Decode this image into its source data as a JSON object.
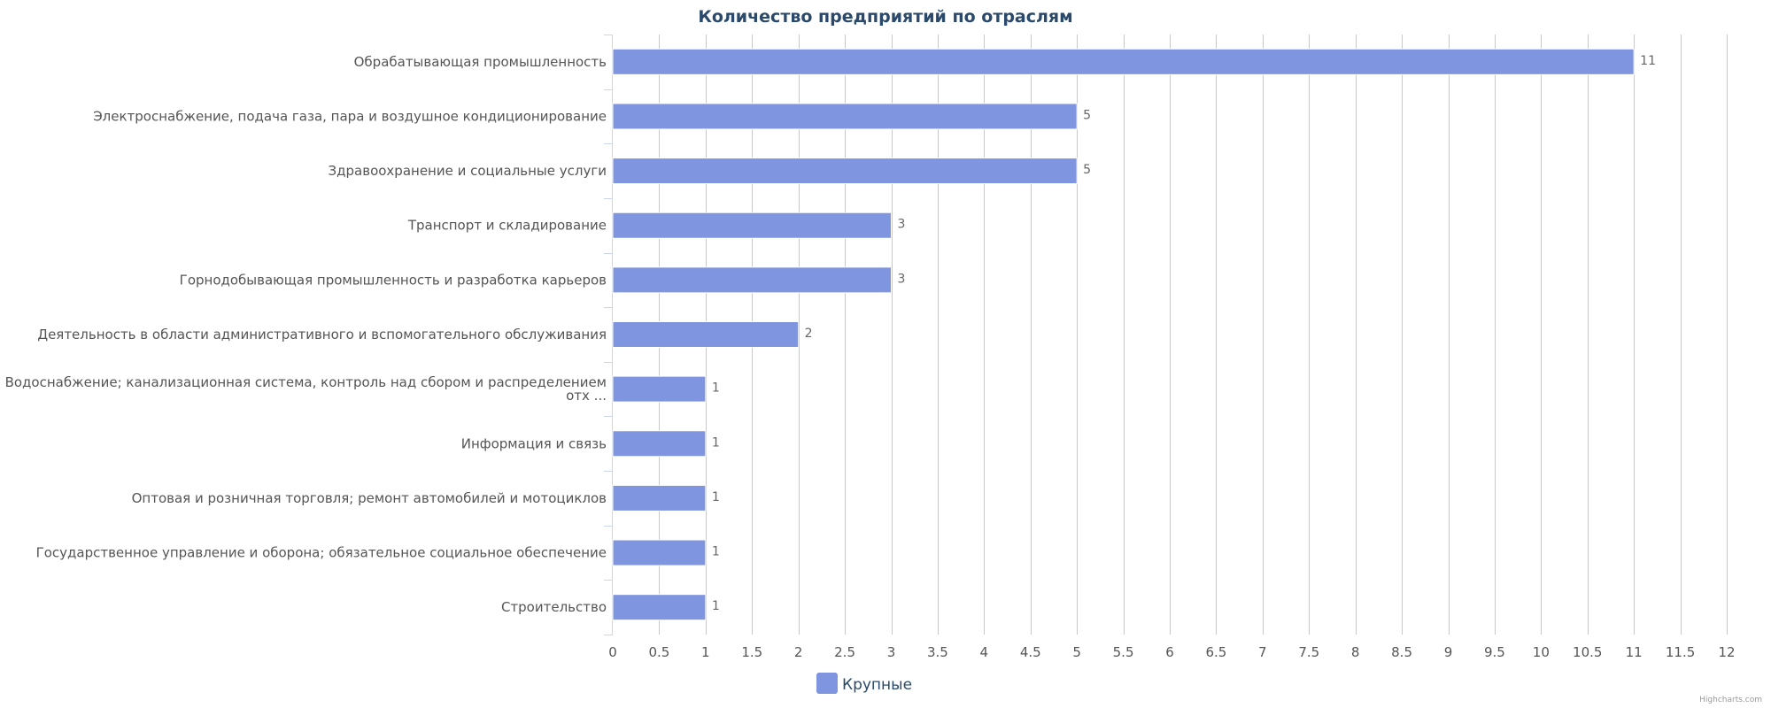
{
  "chart_data": {
    "type": "bar",
    "orientation": "horizontal",
    "title": "Количество предприятий по отраслям",
    "categories": [
      [
        "Обрабатывающая промышленность"
      ],
      [
        "Электроснабжение, подача газа, пара и воздушное кондиционирование"
      ],
      [
        "Здравоохранение и социальные услуги"
      ],
      [
        "Транспорт и складирование"
      ],
      [
        "Горнодобывающая промышленность и разработка карьеров"
      ],
      [
        "Деятельность в области административного и вспомогательного обслуживания"
      ],
      [
        "Водоснабжение; канализационная система, контроль над сбором и распределением",
        "отх ..."
      ],
      [
        "Информация и связь"
      ],
      [
        "Оптовая и розничная торговля; ремонт автомобилей и мотоциклов"
      ],
      [
        "Государственное управление и оборона; обязательное социальное обеспечение"
      ],
      [
        "Строительство"
      ]
    ],
    "series": [
      {
        "name": "Крупные",
        "color": "#7f95df",
        "values": [
          11,
          5,
          5,
          3,
          3,
          2,
          1,
          1,
          1,
          1,
          1
        ]
      }
    ],
    "xlim": [
      0,
      12
    ],
    "xticks": [
      "0",
      "0.5",
      "1",
      "1.5",
      "2",
      "2.5",
      "3",
      "3.5",
      "4",
      "4.5",
      "5",
      "5.5",
      "6",
      "6.5",
      "7",
      "7.5",
      "8",
      "8.5",
      "9",
      "9.5",
      "10",
      "10.5",
      "11",
      "11.5",
      "12"
    ],
    "grid": true,
    "data_labels": true,
    "legend_position": "bottom-center",
    "credits": "Highcharts.com"
  }
}
